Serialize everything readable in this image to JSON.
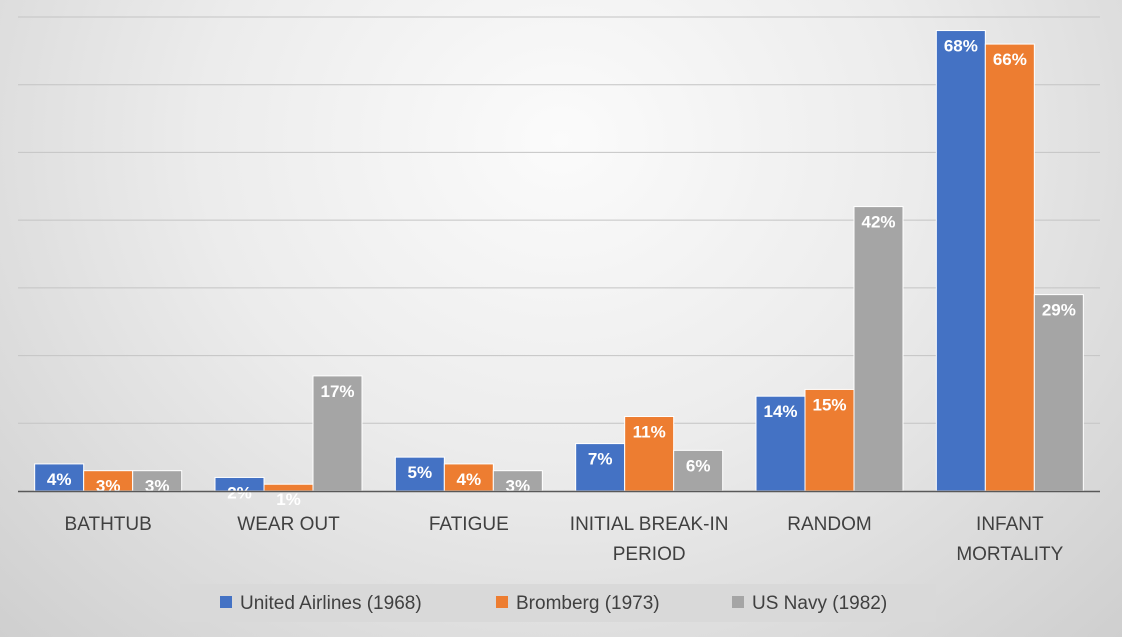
{
  "chart_data": {
    "type": "bar",
    "categories": [
      [
        "BATHTUB"
      ],
      [
        "WEAR OUT"
      ],
      [
        "FATIGUE"
      ],
      [
        "INITIAL BREAK-IN",
        "PERIOD"
      ],
      [
        "RANDOM"
      ],
      [
        "INFANT",
        "MORTALITY"
      ]
    ],
    "series": [
      {
        "name": "United Airlines (1968)",
        "color": "#4472C4",
        "values": [
          4,
          2,
          5,
          7,
          14,
          68
        ],
        "labels": [
          "4%",
          "2%",
          "5%",
          "7%",
          "14%",
          "68%"
        ]
      },
      {
        "name": "Bromberg (1973)",
        "color": "#ED7D31",
        "values": [
          3,
          1,
          4,
          11,
          15,
          66
        ],
        "labels": [
          "3%",
          "1%",
          "4%",
          "11%",
          "15%",
          "66%"
        ]
      },
      {
        "name": "US Navy (1982)",
        "color": "#A5A5A5",
        "values": [
          3,
          17,
          3,
          6,
          42,
          29
        ],
        "labels": [
          "3%",
          "17%",
          "3%",
          "6%",
          "42%",
          "29%"
        ]
      }
    ],
    "ylim": [
      0,
      70
    ],
    "grid": true,
    "legend_position": "bottom",
    "title": "",
    "xlabel": "",
    "ylabel": ""
  }
}
